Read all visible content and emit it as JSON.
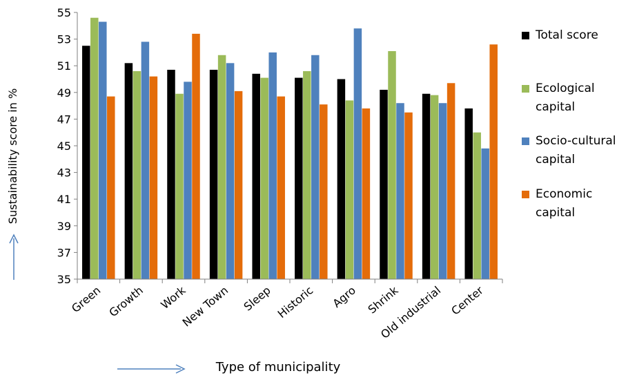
{
  "chart_data": {
    "type": "bar",
    "xlabel": "Type of municipality",
    "ylabel": "Sustainability score in %",
    "ylim": [
      35,
      55
    ],
    "yticks": [
      35,
      37,
      39,
      41,
      43,
      45,
      47,
      49,
      51,
      53,
      55
    ],
    "grid": false,
    "legend_position": "right",
    "categories": [
      "Green",
      "Growth",
      "Work",
      "New Town",
      "Sleep",
      "Historic",
      "Agro",
      "Shrink",
      "Old industrial",
      "Center"
    ],
    "series": [
      {
        "name": "Total score",
        "color": "#000000",
        "values": [
          52.5,
          51.2,
          50.7,
          50.7,
          50.4,
          50.1,
          50.0,
          49.2,
          48.9,
          47.8
        ]
      },
      {
        "name": "Ecological capital",
        "color": "#9BBB59",
        "values": [
          54.6,
          50.6,
          48.9,
          51.8,
          50.1,
          50.6,
          48.4,
          52.1,
          48.8,
          46.0
        ]
      },
      {
        "name": "Socio-cultural capital",
        "color": "#4F81BD",
        "values": [
          54.3,
          52.8,
          49.8,
          51.2,
          52.0,
          51.8,
          53.8,
          48.2,
          48.2,
          44.8
        ]
      },
      {
        "name": "Economic capital",
        "color": "#E46C0A",
        "values": [
          48.7,
          50.2,
          53.4,
          49.1,
          48.7,
          48.1,
          47.8,
          47.5,
          49.7,
          52.6
        ]
      }
    ]
  }
}
